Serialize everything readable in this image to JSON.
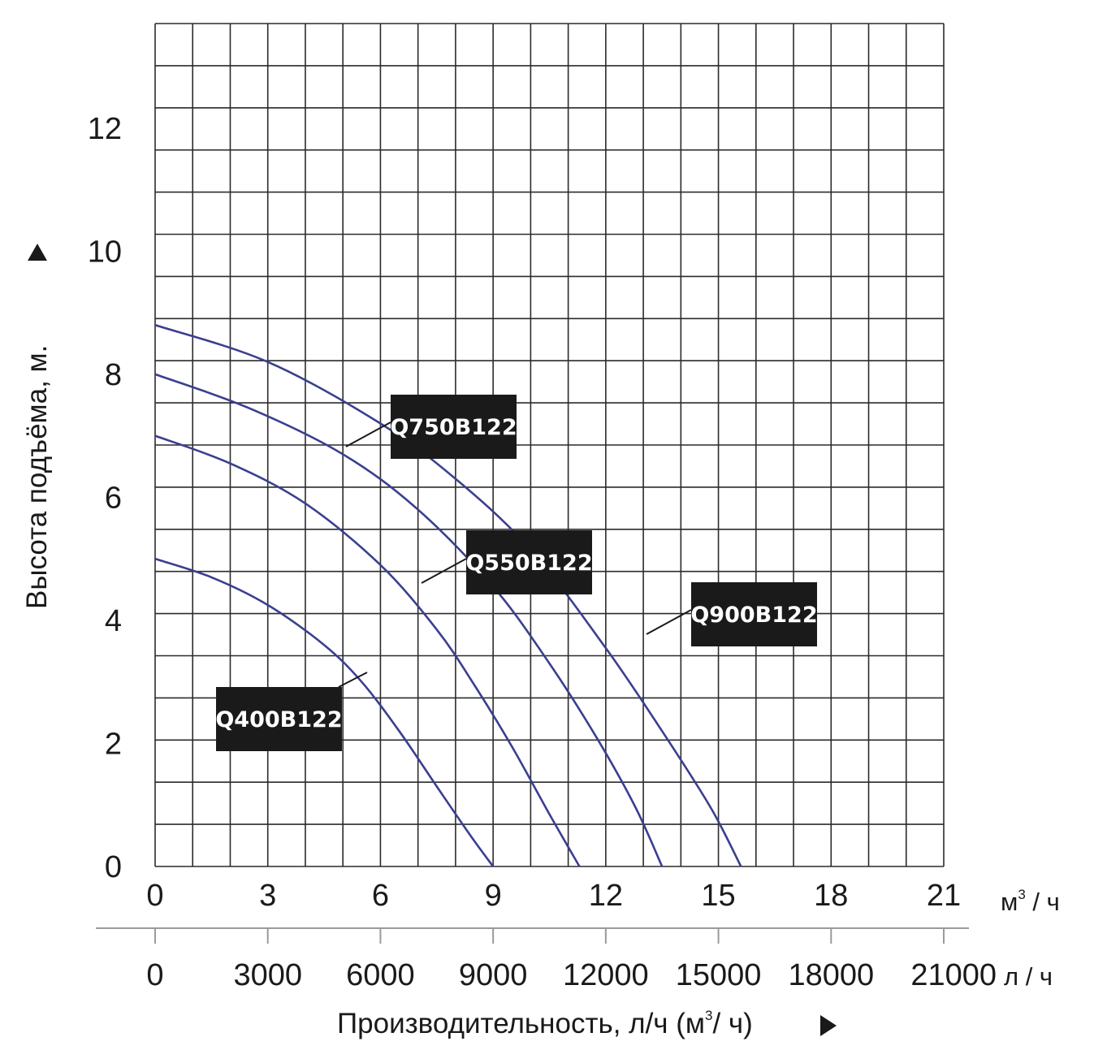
{
  "chart_data": {
    "type": "line",
    "x_unit_label": "м³ / ч",
    "x_unit_text": "м",
    "x_unit_sup": "3",
    "x_unit_tail": " / ч",
    "x_secondary_unit_label": "л / ч",
    "xlabel": "Производительность, л/ч (м³/ ч)",
    "xlabel_main": "Производительность, л/ч (м",
    "xlabel_sup": "3",
    "xlabel_tail": "/ ч)",
    "ylabel": "Высота подъёма, м.",
    "xlim": [
      0,
      21
    ],
    "ylim": [
      0,
      13.7
    ],
    "x_ticks": [
      "0",
      "3",
      "6",
      "9",
      "12",
      "15",
      "18",
      "21"
    ],
    "x_ticks_secondary": [
      "0",
      "3000",
      "6000",
      "9000",
      "12000",
      "15000",
      "18000",
      "21000"
    ],
    "y_ticks": [
      "0",
      "2",
      "4",
      "6",
      "8",
      "10",
      "12"
    ],
    "grid": true,
    "line_color": "#3a3f8f",
    "series": [
      {
        "name": "Q400B122",
        "x": [
          0,
          1.5,
          3,
          4.5,
          5.5,
          6.5,
          7.5,
          8.4,
          9.0
        ],
        "y": [
          5.0,
          4.7,
          4.25,
          3.6,
          3.0,
          2.2,
          1.3,
          0.5,
          0
        ]
      },
      {
        "name": "Q550B122",
        "x": [
          0,
          2,
          4,
          6,
          7.5,
          8.5,
          9.5,
          10.5,
          11.3
        ],
        "y": [
          7.0,
          6.55,
          5.9,
          4.9,
          3.85,
          2.95,
          1.95,
          0.85,
          0
        ]
      },
      {
        "name": "Q750B122",
        "x": [
          0,
          2.5,
          5,
          7,
          9,
          10.5,
          11.8,
          12.8,
          13.5
        ],
        "y": [
          8.0,
          7.45,
          6.7,
          5.8,
          4.55,
          3.3,
          2.05,
          0.95,
          0
        ]
      },
      {
        "name": "Q900B122",
        "x": [
          0,
          3,
          6,
          8,
          10,
          12,
          13.5,
          14.8,
          15.6
        ],
        "y": [
          8.8,
          8.2,
          7.2,
          6.3,
          5.15,
          3.55,
          2.2,
          0.95,
          0
        ]
      }
    ],
    "labels": [
      {
        "text": "Q750B122",
        "series": "Q750B122"
      },
      {
        "text": "Q550B122",
        "series": "Q550B122"
      },
      {
        "text": "Q900B122",
        "series": "Q900B122"
      },
      {
        "text": "Q400B122",
        "series": "Q400B122"
      }
    ]
  }
}
